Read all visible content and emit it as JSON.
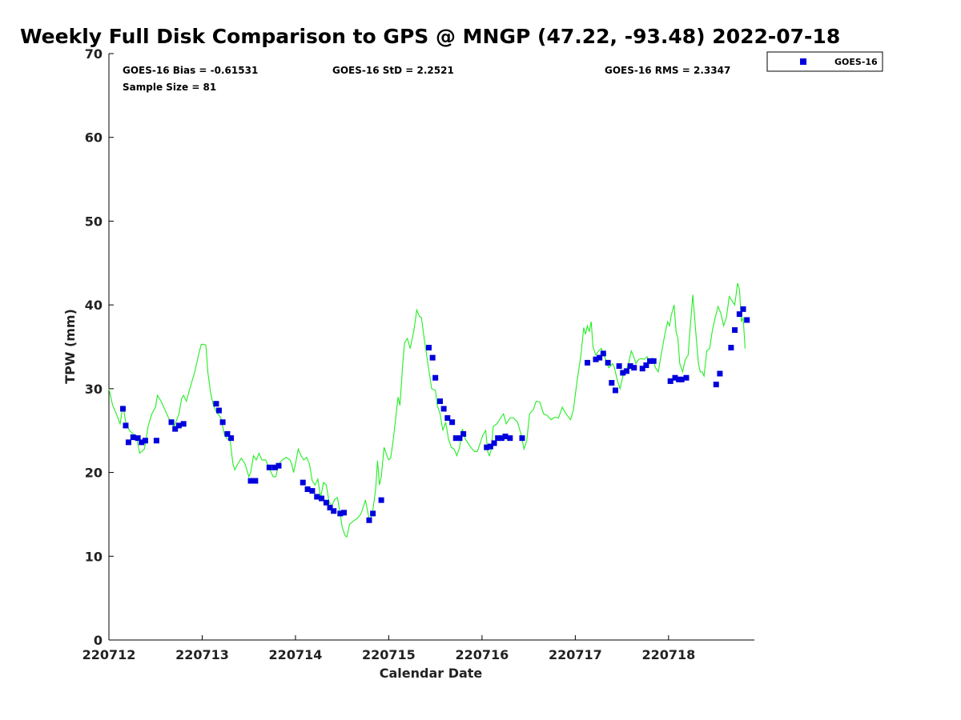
{
  "chart_data": {
    "type": "line+scatter",
    "title": "Weekly Full Disk Comparison to GPS @ MNGP (47.22, -93.48) 2022-07-18",
    "xlabel": "Calendar Date",
    "ylabel": "TPW (mm)",
    "xlim": [
      0,
      6.92
    ],
    "ylim": [
      0,
      70
    ],
    "yticks": [
      "0",
      "10",
      "20",
      "30",
      "40",
      "50",
      "60",
      "70"
    ],
    "xticks": [
      "220712",
      "220713",
      "220714",
      "220715",
      "220716",
      "220717",
      "220718"
    ],
    "stats": {
      "bias": "GOES-16 Bias = -0.61531",
      "std": "GOES-16 StD = 2.2521",
      "rms": "GOES-16 RMS = 2.3347",
      "sample": "Sample Size = 81"
    },
    "legend": {
      "label": "GOES-16",
      "placement": "outside-top-right"
    },
    "colors": {
      "gps_line": "#22ee22",
      "goes_marker": "#0000dd"
    },
    "gps_series": {
      "name": "GPS",
      "points": [
        [
          0.0,
          30.0
        ],
        [
          0.04,
          28.0
        ],
        [
          0.08,
          27.0
        ],
        [
          0.12,
          25.8
        ],
        [
          0.15,
          28.0
        ],
        [
          0.18,
          26.0
        ],
        [
          0.22,
          25.0
        ],
        [
          0.27,
          24.5
        ],
        [
          0.3,
          24.0
        ],
        [
          0.33,
          22.3
        ],
        [
          0.38,
          22.8
        ],
        [
          0.42,
          25.5
        ],
        [
          0.46,
          27.0
        ],
        [
          0.5,
          27.8
        ],
        [
          0.52,
          29.2
        ],
        [
          0.56,
          28.5
        ],
        [
          0.62,
          27.0
        ],
        [
          0.66,
          26.0
        ],
        [
          0.7,
          25.5
        ],
        [
          0.75,
          27.0
        ],
        [
          0.78,
          28.8
        ],
        [
          0.8,
          29.2
        ],
        [
          0.83,
          28.5
        ],
        [
          0.88,
          30.5
        ],
        [
          0.92,
          32.0
        ],
        [
          0.96,
          34.0
        ],
        [
          0.99,
          35.3
        ],
        [
          1.02,
          35.3
        ],
        [
          1.04,
          35.2
        ],
        [
          1.06,
          32.0
        ],
        [
          1.09,
          29.5
        ],
        [
          1.12,
          28.0
        ],
        [
          1.15,
          27.3
        ],
        [
          1.2,
          26.5
        ],
        [
          1.24,
          24.5
        ],
        [
          1.27,
          24.0
        ],
        [
          1.3,
          23.8
        ],
        [
          1.33,
          21.0
        ],
        [
          1.35,
          20.3
        ],
        [
          1.38,
          21.0
        ],
        [
          1.42,
          21.7
        ],
        [
          1.46,
          21.0
        ],
        [
          1.5,
          19.5
        ],
        [
          1.52,
          20.0
        ],
        [
          1.55,
          22.0
        ],
        [
          1.58,
          21.5
        ],
        [
          1.61,
          22.3
        ],
        [
          1.64,
          21.5
        ],
        [
          1.68,
          21.5
        ],
        [
          1.72,
          20.5
        ],
        [
          1.76,
          19.5
        ],
        [
          1.79,
          19.5
        ],
        [
          1.82,
          21.0
        ],
        [
          1.86,
          21.5
        ],
        [
          1.9,
          21.8
        ],
        [
          1.94,
          21.5
        ],
        [
          1.96,
          21.0
        ],
        [
          1.98,
          20.0
        ],
        [
          2.0,
          21.0
        ],
        [
          2.03,
          22.8
        ],
        [
          2.06,
          22.0
        ],
        [
          2.09,
          21.5
        ],
        [
          2.12,
          21.8
        ],
        [
          2.15,
          21.0
        ],
        [
          2.18,
          19.0
        ],
        [
          2.21,
          18.5
        ],
        [
          2.24,
          19.2
        ],
        [
          2.27,
          17.0
        ],
        [
          2.3,
          18.8
        ],
        [
          2.33,
          18.5
        ],
        [
          2.36,
          16.5
        ],
        [
          2.39,
          16.0
        ],
        [
          2.42,
          16.8
        ],
        [
          2.45,
          17.0
        ],
        [
          2.48,
          15.0
        ],
        [
          2.5,
          13.5
        ],
        [
          2.53,
          12.5
        ],
        [
          2.55,
          12.3
        ],
        [
          2.58,
          13.8
        ],
        [
          2.62,
          14.2
        ],
        [
          2.66,
          14.5
        ],
        [
          2.7,
          15.0
        ],
        [
          2.73,
          16.0
        ],
        [
          2.75,
          16.7
        ],
        [
          2.78,
          15.0
        ],
        [
          2.8,
          14.0
        ],
        [
          2.83,
          15.5
        ],
        [
          2.86,
          18.0
        ],
        [
          2.88,
          21.4
        ],
        [
          2.9,
          18.5
        ],
        [
          2.92,
          19.5
        ],
        [
          2.95,
          23.0
        ],
        [
          2.98,
          22.0
        ],
        [
          3.0,
          21.5
        ],
        [
          3.02,
          21.7
        ],
        [
          3.05,
          24.0
        ],
        [
          3.08,
          27.0
        ],
        [
          3.1,
          29.0
        ],
        [
          3.12,
          28.0
        ],
        [
          3.15,
          33.0
        ],
        [
          3.17,
          35.5
        ],
        [
          3.2,
          36.0
        ],
        [
          3.23,
          34.8
        ],
        [
          3.27,
          37.0
        ],
        [
          3.3,
          39.4
        ],
        [
          3.33,
          38.6
        ],
        [
          3.35,
          38.5
        ],
        [
          3.38,
          36.0
        ],
        [
          3.42,
          33.0
        ],
        [
          3.46,
          30.0
        ],
        [
          3.5,
          29.8
        ],
        [
          3.52,
          28.0
        ],
        [
          3.55,
          27.0
        ],
        [
          3.58,
          25.0
        ],
        [
          3.61,
          26.0
        ],
        [
          3.64,
          24.0
        ],
        [
          3.67,
          23.0
        ],
        [
          3.7,
          22.8
        ],
        [
          3.73,
          22.0
        ],
        [
          3.76,
          23.0
        ],
        [
          3.79,
          25.2
        ],
        [
          3.82,
          24.0
        ],
        [
          3.85,
          23.5
        ],
        [
          3.88,
          23.0
        ],
        [
          3.92,
          22.5
        ],
        [
          3.95,
          22.5
        ],
        [
          3.98,
          23.5
        ],
        [
          4.01,
          24.5
        ],
        [
          4.04,
          25.0
        ],
        [
          4.06,
          22.5
        ],
        [
          4.08,
          22.0
        ],
        [
          4.1,
          22.8
        ],
        [
          4.12,
          25.5
        ],
        [
          4.16,
          25.8
        ],
        [
          4.2,
          26.5
        ],
        [
          4.23,
          27.0
        ],
        [
          4.26,
          25.8
        ],
        [
          4.3,
          26.5
        ],
        [
          4.34,
          26.5
        ],
        [
          4.38,
          26.0
        ],
        [
          4.42,
          24.5
        ],
        [
          4.45,
          22.8
        ],
        [
          4.48,
          23.8
        ],
        [
          4.51,
          27.0
        ],
        [
          4.55,
          27.5
        ],
        [
          4.58,
          28.5
        ],
        [
          4.62,
          28.4
        ],
        [
          4.66,
          27.0
        ],
        [
          4.7,
          26.8
        ],
        [
          4.74,
          26.3
        ],
        [
          4.78,
          26.6
        ],
        [
          4.82,
          26.5
        ],
        [
          4.86,
          27.8
        ],
        [
          4.9,
          27.0
        ],
        [
          4.95,
          26.3
        ],
        [
          4.98,
          27.5
        ],
        [
          5.02,
          31.0
        ],
        [
          5.06,
          34.0
        ],
        [
          5.09,
          37.3
        ],
        [
          5.11,
          36.5
        ],
        [
          5.13,
          37.5
        ],
        [
          5.15,
          36.8
        ],
        [
          5.17,
          38.0
        ],
        [
          5.19,
          35.0
        ],
        [
          5.22,
          34.0
        ],
        [
          5.25,
          34.5
        ],
        [
          5.28,
          34.8
        ],
        [
          5.31,
          34.0
        ],
        [
          5.34,
          33.0
        ],
        [
          5.36,
          32.5
        ],
        [
          5.4,
          33.0
        ],
        [
          5.42,
          32.5
        ],
        [
          5.45,
          31.0
        ],
        [
          5.48,
          30.0
        ],
        [
          5.51,
          31.5
        ],
        [
          5.54,
          32.0
        ],
        [
          5.57,
          33.0
        ],
        [
          5.6,
          34.5
        ],
        [
          5.62,
          34.0
        ],
        [
          5.65,
          33.0
        ],
        [
          5.68,
          33.5
        ],
        [
          5.71,
          33.6
        ],
        [
          5.74,
          33.5
        ],
        [
          5.77,
          33.8
        ],
        [
          5.8,
          33.0
        ],
        [
          5.83,
          33.6
        ],
        [
          5.86,
          32.5
        ],
        [
          5.89,
          32.0
        ],
        [
          5.92,
          34.0
        ],
        [
          5.96,
          36.5
        ],
        [
          5.99,
          38.0
        ],
        [
          6.01,
          37.5
        ],
        [
          6.03,
          38.8
        ],
        [
          6.06,
          40.0
        ],
        [
          6.08,
          36.8
        ],
        [
          6.1,
          36.0
        ],
        [
          6.12,
          33.0
        ],
        [
          6.15,
          32.0
        ],
        [
          6.18,
          33.5
        ],
        [
          6.21,
          34.0
        ],
        [
          6.23,
          37.0
        ],
        [
          6.26,
          41.2
        ],
        [
          6.29,
          37.0
        ],
        [
          6.32,
          33.0
        ],
        [
          6.34,
          32.0
        ],
        [
          6.36,
          32.0
        ],
        [
          6.38,
          31.5
        ],
        [
          6.41,
          34.5
        ],
        [
          6.44,
          34.8
        ],
        [
          6.47,
          37.0
        ],
        [
          6.5,
          38.5
        ],
        [
          6.53,
          39.8
        ],
        [
          6.56,
          39.0
        ],
        [
          6.59,
          37.5
        ],
        [
          6.62,
          38.5
        ],
        [
          6.65,
          41.0
        ],
        [
          6.68,
          40.5
        ],
        [
          6.71,
          40.0
        ],
        [
          6.74,
          42.6
        ],
        [
          6.76,
          41.8
        ],
        [
          6.78,
          38.0
        ],
        [
          6.8,
          38.5
        ],
        [
          6.82,
          34.8
        ]
      ]
    },
    "goes_series": {
      "name": "GOES-16",
      "points": [
        [
          0.15,
          27.6
        ],
        [
          0.18,
          25.6
        ],
        [
          0.21,
          23.6
        ],
        [
          0.26,
          24.2
        ],
        [
          0.31,
          24.1
        ],
        [
          0.35,
          23.6
        ],
        [
          0.39,
          23.8
        ],
        [
          0.51,
          23.8
        ],
        [
          0.67,
          26.0
        ],
        [
          0.71,
          25.2
        ],
        [
          0.75,
          25.6
        ],
        [
          0.8,
          25.8
        ],
        [
          1.15,
          28.2
        ],
        [
          1.18,
          27.4
        ],
        [
          1.22,
          26.0
        ],
        [
          1.27,
          24.6
        ],
        [
          1.31,
          24.1
        ],
        [
          1.52,
          19.0
        ],
        [
          1.57,
          19.0
        ],
        [
          1.72,
          20.6
        ],
        [
          1.78,
          20.6
        ],
        [
          1.82,
          20.8
        ],
        [
          2.08,
          18.8
        ],
        [
          2.13,
          18.0
        ],
        [
          2.18,
          17.8
        ],
        [
          2.23,
          17.1
        ],
        [
          2.28,
          16.9
        ],
        [
          2.33,
          16.4
        ],
        [
          2.37,
          15.8
        ],
        [
          2.41,
          15.4
        ],
        [
          2.48,
          15.1
        ],
        [
          2.52,
          15.2
        ],
        [
          2.79,
          14.3
        ],
        [
          2.83,
          15.1
        ],
        [
          2.92,
          16.7
        ],
        [
          3.43,
          34.9
        ],
        [
          3.47,
          33.7
        ],
        [
          3.5,
          31.3
        ],
        [
          3.55,
          28.5
        ],
        [
          3.59,
          27.6
        ],
        [
          3.63,
          26.5
        ],
        [
          3.68,
          26.0
        ],
        [
          3.72,
          24.1
        ],
        [
          3.76,
          24.1
        ],
        [
          3.8,
          24.6
        ],
        [
          4.05,
          23.0
        ],
        [
          4.09,
          23.1
        ],
        [
          4.13,
          23.5
        ],
        [
          4.17,
          24.1
        ],
        [
          4.21,
          24.1
        ],
        [
          4.25,
          24.3
        ],
        [
          4.3,
          24.1
        ],
        [
          4.43,
          24.1
        ],
        [
          5.13,
          33.1
        ],
        [
          5.22,
          33.5
        ],
        [
          5.26,
          33.7
        ],
        [
          5.3,
          34.2
        ],
        [
          5.35,
          33.1
        ],
        [
          5.39,
          30.7
        ],
        [
          5.43,
          29.8
        ],
        [
          5.47,
          32.7
        ],
        [
          5.51,
          31.9
        ],
        [
          5.55,
          32.1
        ],
        [
          5.59,
          32.7
        ],
        [
          5.63,
          32.5
        ],
        [
          5.72,
          32.4
        ],
        [
          5.76,
          32.8
        ],
        [
          5.8,
          33.3
        ],
        [
          5.84,
          33.3
        ],
        [
          6.02,
          30.9
        ],
        [
          6.07,
          31.3
        ],
        [
          6.11,
          31.1
        ],
        [
          6.14,
          31.1
        ],
        [
          6.19,
          31.3
        ],
        [
          6.51,
          30.5
        ],
        [
          6.55,
          31.8
        ],
        [
          6.67,
          34.9
        ],
        [
          6.71,
          37.0
        ],
        [
          6.76,
          38.9
        ],
        [
          6.8,
          39.5
        ],
        [
          6.84,
          38.2
        ]
      ]
    }
  }
}
